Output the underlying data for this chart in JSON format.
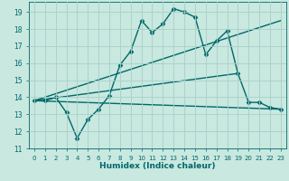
{
  "title": "",
  "xlabel": "Humidex (Indice chaleur)",
  "bg_color": "#c8e8e0",
  "grid_color": "#a8d0c8",
  "line_color": "#006868",
  "xlim": [
    -0.5,
    23.5
  ],
  "ylim": [
    11,
    19.6
  ],
  "yticks": [
    11,
    12,
    13,
    14,
    15,
    16,
    17,
    18,
    19
  ],
  "xticks": [
    0,
    1,
    2,
    3,
    4,
    5,
    6,
    7,
    8,
    9,
    10,
    11,
    12,
    13,
    14,
    15,
    16,
    17,
    18,
    19,
    20,
    21,
    22,
    23
  ],
  "series": [
    {
      "x": [
        0,
        1,
        2,
        3,
        4,
        5,
        6,
        7,
        8,
        9,
        10,
        11,
        12,
        13,
        14,
        15,
        16,
        17,
        18,
        19,
        20,
        21,
        22,
        23
      ],
      "y": [
        13.8,
        13.8,
        14.0,
        13.1,
        11.6,
        12.7,
        13.3,
        14.1,
        15.9,
        16.7,
        18.5,
        17.8,
        18.3,
        19.2,
        19.0,
        18.7,
        16.5,
        17.3,
        17.9,
        15.4,
        13.7,
        13.7,
        13.4,
        13.3
      ],
      "marker": "D",
      "markersize": 2.5,
      "linewidth": 1.0
    },
    {
      "x": [
        0,
        23
      ],
      "y": [
        13.8,
        18.5
      ],
      "marker": null,
      "linewidth": 1.0
    },
    {
      "x": [
        0,
        19
      ],
      "y": [
        13.8,
        15.4
      ],
      "marker": null,
      "linewidth": 1.0
    },
    {
      "x": [
        0,
        23
      ],
      "y": [
        13.8,
        13.3
      ],
      "marker": null,
      "linewidth": 1.0
    }
  ]
}
